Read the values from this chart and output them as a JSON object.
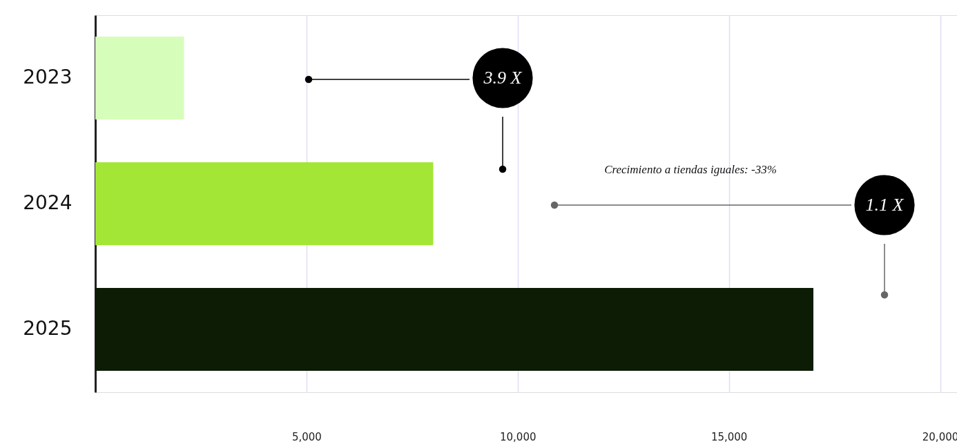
{
  "chart_data": {
    "type": "bar",
    "orientation": "horizontal",
    "categories": [
      "2023",
      "2024",
      "2025"
    ],
    "values": [
      2100,
      8000,
      17000
    ],
    "colors": [
      "#d6fdb9",
      "#a3e635",
      "#0c1c05"
    ],
    "xlim": [
      0,
      20400
    ],
    "xticks": [
      {
        "value": 5000,
        "label": "5,000"
      },
      {
        "value": 10000,
        "label": "10,000"
      },
      {
        "value": 15000,
        "label": "15,000"
      },
      {
        "value": 20000,
        "label": "20,000"
      }
    ],
    "grid": "x",
    "annotations": [
      "3.9 X",
      "1.1 X",
      "Crecimiento a tiendas iguales: -33%"
    ]
  }
}
